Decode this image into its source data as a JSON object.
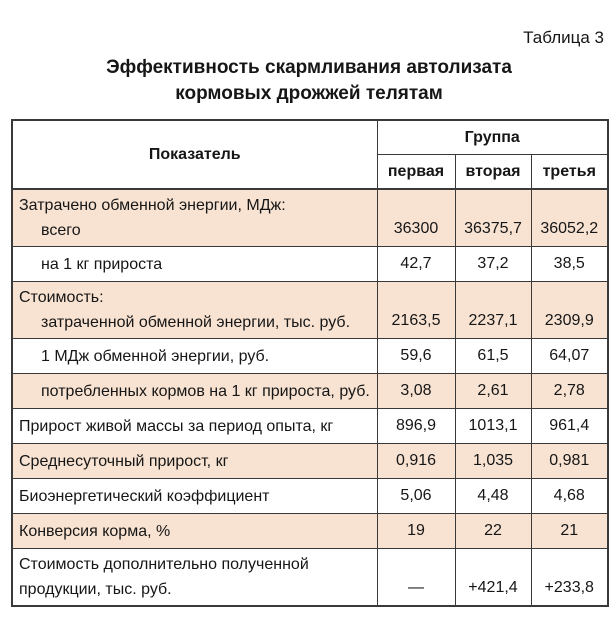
{
  "page": {
    "table_label": "Таблица 3",
    "title_line1": "Эффективность скармливания автолизата",
    "title_line2": "кормовых дрожжей телятам"
  },
  "table": {
    "header": {
      "indicator": "Показатель",
      "group": "Группа",
      "columns": [
        "первая",
        "вторая",
        "третья"
      ]
    },
    "rows": [
      {
        "shaded": true,
        "lines": [
          {
            "text": "Затрачено обменной энергии, МДж:",
            "indent": false
          },
          {
            "text": "всего",
            "indent": true
          }
        ],
        "values": [
          "36300",
          "36375,7",
          "36052,2"
        ]
      },
      {
        "shaded": false,
        "lines": [
          {
            "text": "на 1 кг прироста",
            "indent": true
          }
        ],
        "values": [
          "42,7",
          "37,2",
          "38,5"
        ]
      },
      {
        "shaded": true,
        "lines": [
          {
            "text": "Стоимость:",
            "indent": false
          },
          {
            "text": "затраченной обменной энергии, тыс. руб.",
            "indent": true
          }
        ],
        "values": [
          "2163,5",
          "2237,1",
          "2309,9"
        ]
      },
      {
        "shaded": false,
        "lines": [
          {
            "text": "1 МДж обменной энергии, руб.",
            "indent": true
          }
        ],
        "values": [
          "59,6",
          "61,5",
          "64,07"
        ]
      },
      {
        "shaded": true,
        "lines": [
          {
            "text": "потребленных кормов на 1 кг прироста, руб.",
            "indent": true
          }
        ],
        "values": [
          "3,08",
          "2,61",
          "2,78"
        ]
      },
      {
        "shaded": false,
        "lines": [
          {
            "text": "Прирост живой массы за период опыта, кг",
            "indent": false
          }
        ],
        "values": [
          "896,9",
          "1013,1",
          "961,4"
        ]
      },
      {
        "shaded": true,
        "lines": [
          {
            "text": "Среднесуточный прирост, кг",
            "indent": false
          }
        ],
        "values": [
          "0,916",
          "1,035",
          "0,981"
        ]
      },
      {
        "shaded": false,
        "lines": [
          {
            "text": "Биоэнергетический коэффициент",
            "indent": false
          }
        ],
        "values": [
          "5,06",
          "4,48",
          "4,68"
        ]
      },
      {
        "shaded": true,
        "lines": [
          {
            "text": "Конверсия корма, %",
            "indent": false
          }
        ],
        "values": [
          "19",
          "22",
          "21"
        ]
      },
      {
        "shaded": false,
        "lines": [
          {
            "text": "Стоимость дополнительно полученной",
            "indent": false
          },
          {
            "text": "продукции, тыс. руб.",
            "indent": false
          }
        ],
        "values": [
          "—",
          "+421,4",
          "+233,8"
        ]
      }
    ],
    "colors": {
      "row_shade": "#f8e3d2",
      "border": "#3a3a3a",
      "text": "#161616"
    }
  }
}
